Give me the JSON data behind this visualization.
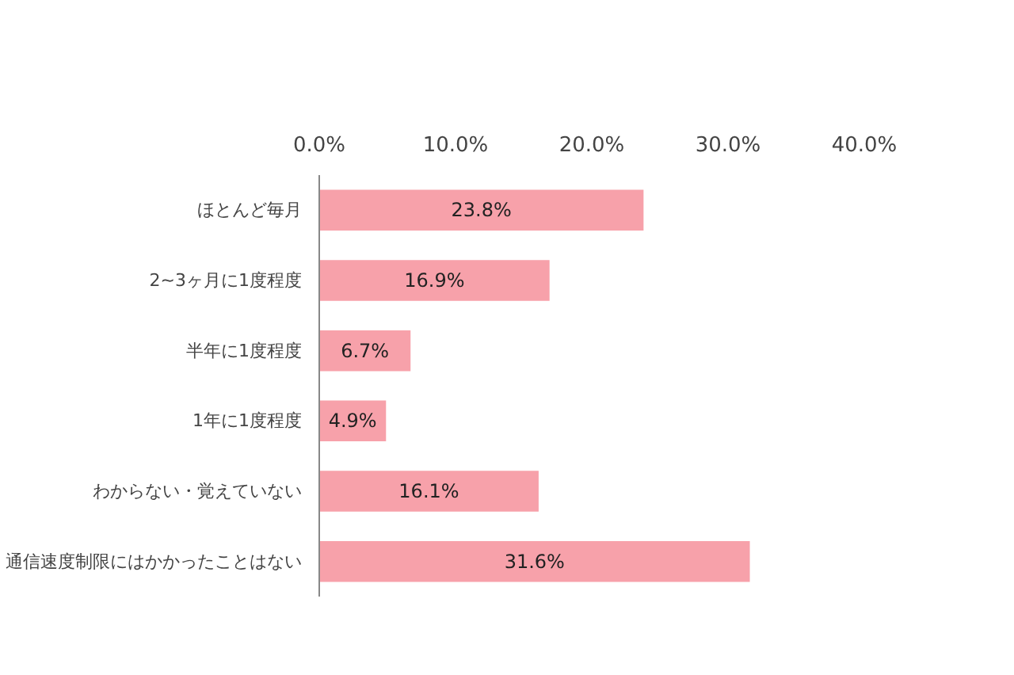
{
  "chart_data": {
    "type": "bar",
    "orientation": "horizontal",
    "categories": [
      "ほとんど毎月",
      "2~3ヶ月に1度程度",
      "半年に1度程度",
      "1年に1度程度",
      "わからない・覚えていない",
      "通信速度制限にはかかったことはない"
    ],
    "values": [
      23.8,
      16.9,
      6.7,
      4.9,
      16.1,
      31.6
    ],
    "value_labels": [
      "23.8%",
      "16.9%",
      "6.7%",
      "4.9%",
      "16.1%",
      "31.6%"
    ],
    "color": "#f7a1aa",
    "xlim": [
      0,
      40
    ],
    "xticks": [
      {
        "value": 0,
        "label": "0.0%"
      },
      {
        "value": 10,
        "label": "10.0%"
      },
      {
        "value": 20,
        "label": "20.0%"
      },
      {
        "value": 30,
        "label": "30.0%"
      },
      {
        "value": 40,
        "label": "40.0%"
      }
    ],
    "grid": false
  }
}
